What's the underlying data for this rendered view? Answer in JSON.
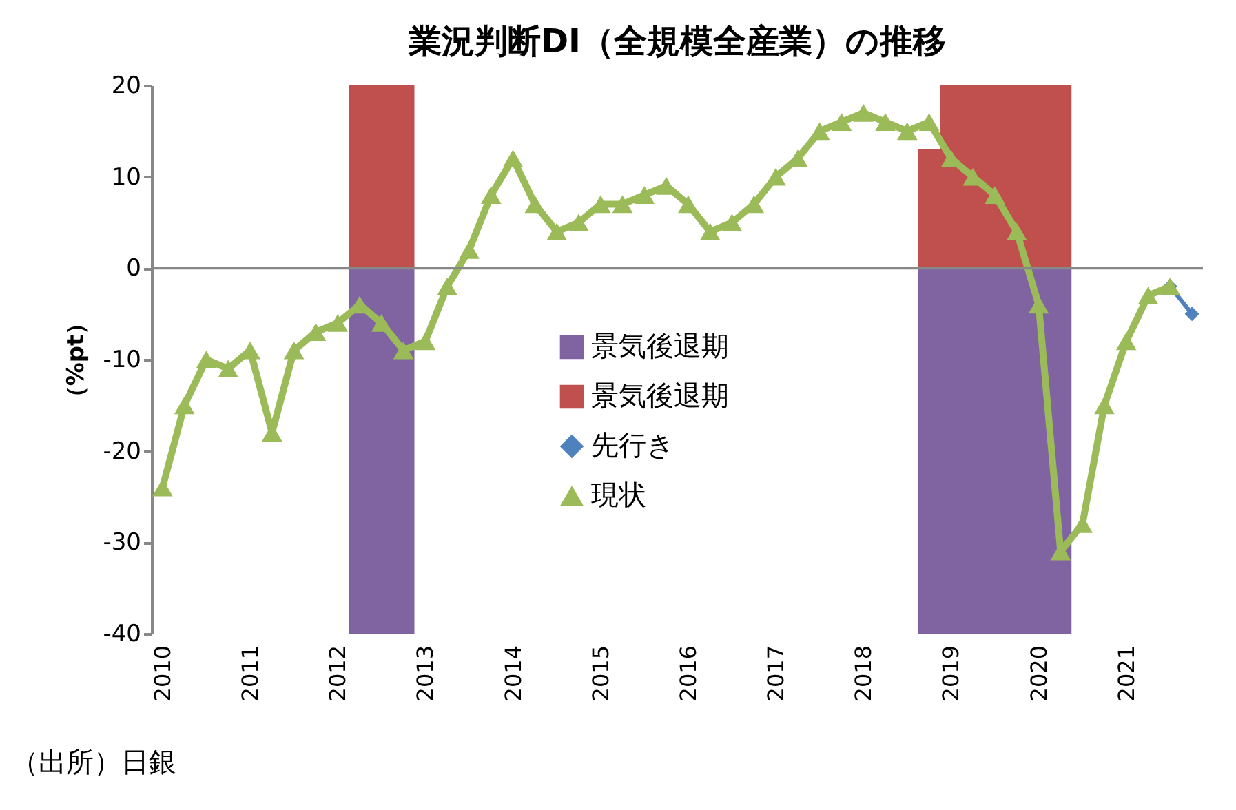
{
  "chart_data": {
    "type": "line",
    "title": "業況判断DI（全規模全産業）の推移",
    "ylabel": "（%pt）",
    "annotations": [
      "（出所）日銀"
    ],
    "x": [
      2010,
      2010.25,
      2010.5,
      2010.75,
      2011,
      2011.25,
      2011.5,
      2011.75,
      2012,
      2012.25,
      2012.5,
      2012.75,
      2013,
      2013.25,
      2013.5,
      2013.75,
      2014,
      2014.25,
      2014.5,
      2014.75,
      2015,
      2015.25,
      2015.5,
      2015.75,
      2016,
      2016.25,
      2016.5,
      2016.75,
      2017,
      2017.25,
      2017.5,
      2017.75,
      2018,
      2018.25,
      2018.5,
      2018.75,
      2019,
      2019.25,
      2019.5,
      2019.75,
      2020,
      2020.25,
      2020.5,
      2020.75,
      2021,
      2021.25,
      2021.5,
      2021.75
    ],
    "series": [
      {
        "name": "景気後退期",
        "type": "area",
        "color": "#8064a2",
        "x": [
          2012.125,
          2012.875,
          2015,
          2018.625,
          2020.375
        ],
        "values": [
          -40,
          -40,
          null,
          -40,
          -40
        ]
      },
      {
        "name": "景気後退期",
        "type": "area",
        "color": "#c0504d",
        "x": [
          2012.125,
          2012.875,
          2015,
          2018.625,
          2018.875,
          2018.875,
          2020.375
        ],
        "values": [
          20,
          20,
          null,
          13,
          13,
          20,
          20
        ]
      },
      {
        "name": "先行き",
        "color": "#4f81bd",
        "marker": "diamond",
        "values": [
          null,
          null,
          null,
          null,
          null,
          null,
          null,
          null,
          null,
          null,
          null,
          null,
          null,
          null,
          null,
          null,
          null,
          null,
          null,
          null,
          null,
          null,
          null,
          null,
          null,
          null,
          null,
          null,
          null,
          null,
          null,
          null,
          null,
          null,
          null,
          null,
          null,
          null,
          null,
          null,
          null,
          null,
          null,
          null,
          null,
          null,
          -2,
          -5
        ]
      },
      {
        "name": "現状",
        "color": "#9bbb59",
        "marker": "triangle",
        "values": [
          -24,
          -15,
          -10,
          -11,
          -9,
          -18,
          -9,
          -7,
          -6,
          -4,
          -6,
          -9,
          -8,
          -2,
          2,
          8,
          12,
          7,
          4,
          5,
          7,
          7,
          8,
          9,
          7,
          4,
          5,
          7,
          10,
          12,
          15,
          16,
          17,
          16,
          15,
          16,
          12,
          10,
          8,
          4,
          -4,
          -31,
          -28,
          -15,
          -8,
          -3,
          -2,
          null
        ]
      }
    ],
    "xlim": [
      2009.875,
      2021.875
    ],
    "xticks": [
      2010,
      2011,
      2012,
      2013,
      2014,
      2015,
      2016,
      2017,
      2018,
      2019,
      2020,
      2021
    ],
    "ylim": [
      -40,
      20
    ],
    "yticks": [
      -40,
      -30,
      -20,
      -10,
      0,
      10,
      20
    ],
    "grid": false,
    "ref_lines": [
      {
        "axis": "y",
        "value": 0,
        "color": "#888888"
      }
    ],
    "legend": "center"
  }
}
